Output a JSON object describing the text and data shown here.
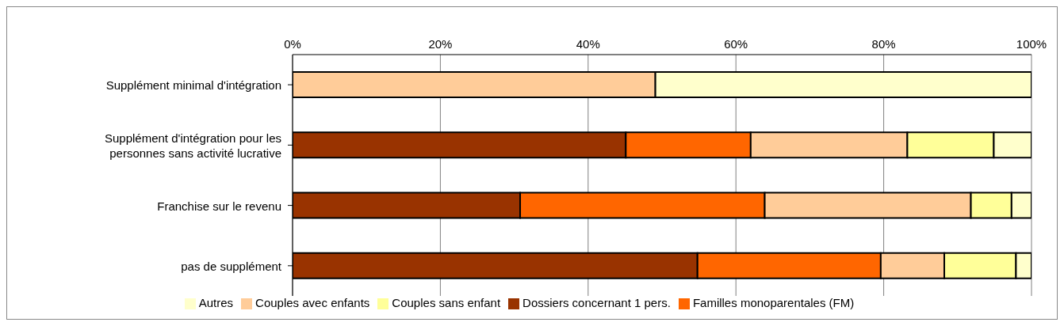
{
  "chart_data": {
    "type": "bar",
    "orientation": "horizontal",
    "stacked": true,
    "categories": [
      "Supplément minimal d'intégration",
      "Supplément d'intégration pour les personnes sans activité lucrative",
      "Franchise sur le revenu",
      "pas de supplément"
    ],
    "series": [
      {
        "name": "Dossiers concernant 1 pers.",
        "color": "#993300",
        "values": [
          0,
          45.1,
          30.8,
          54.8
        ]
      },
      {
        "name": "Familles monoparentales (FM)",
        "color": "#ff6600",
        "values": [
          0,
          16.9,
          33.1,
          24.8
        ]
      },
      {
        "name": "Couples avec enfants",
        "color": "#ffcc99",
        "values": [
          49.1,
          21.2,
          27.9,
          8.6
        ]
      },
      {
        "name": "Couples sans enfant",
        "color": "#ffff99",
        "values": [
          0,
          11.7,
          5.5,
          9.7
        ]
      },
      {
        "name": "Autres",
        "color": "#ffffcc",
        "values": [
          50.9,
          5.1,
          2.7,
          2.1
        ]
      }
    ],
    "xlim": [
      0,
      100
    ],
    "xticks": [
      {
        "value": 0,
        "label": "0%"
      },
      {
        "value": 20,
        "label": "20%"
      },
      {
        "value": 40,
        "label": "40%"
      },
      {
        "value": 60,
        "label": "60%"
      },
      {
        "value": 80,
        "label": "80%"
      },
      {
        "value": 100,
        "label": "100%"
      }
    ],
    "grid": "x",
    "legend": "bottom"
  }
}
